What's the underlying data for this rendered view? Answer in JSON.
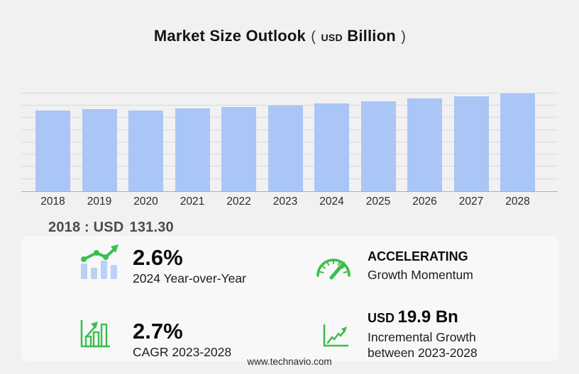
{
  "title": {
    "main": "Market Size Outlook",
    "paren_open": "(",
    "unit_currency": "USD",
    "unit_word": "Billion",
    "paren_close": ")"
  },
  "chart_data": {
    "type": "bar",
    "title": "Market Size Outlook (USD Billion)",
    "categories": [
      "2018",
      "2019",
      "2020",
      "2021",
      "2022",
      "2023",
      "2024",
      "2025",
      "2026",
      "2027",
      "2028"
    ],
    "values": [
      131.3,
      134.6,
      131.6,
      134.9,
      137.3,
      139.7,
      143.3,
      147.1,
      151.1,
      155.2,
      159.6
    ],
    "labeled_point": {
      "year": "2018",
      "value": "131.30",
      "unit": "USD Billion"
    },
    "xlabel": "",
    "ylabel": "",
    "ylim": [
      0,
      160
    ],
    "gridline_step": 20,
    "grid": true,
    "legend": false,
    "bar_color": "#a9c6f6"
  },
  "caption": {
    "label": "2018 : USD",
    "value": "131.30"
  },
  "stats": [
    {
      "id": "yoy",
      "icon": "trend-bars-icon",
      "value": "2.6%",
      "label": "2024 Year-over-Year"
    },
    {
      "id": "momentum",
      "icon": "speedometer-icon",
      "value": "ACCELERATING",
      "label": "Growth Momentum"
    },
    {
      "id": "cagr",
      "icon": "bar-growth-icon",
      "value": "2.7%",
      "label": "CAGR 2023-2028"
    },
    {
      "id": "incremental",
      "icon": "line-growth-icon",
      "value_prefix": "USD",
      "value": "19.9 Bn",
      "label_line1": "Incremental Growth",
      "label_line2": "between 2023-2028"
    }
  ],
  "footer": {
    "url": "www.technavio.com"
  },
  "colors": {
    "background": "#f1f1f2",
    "bar": "#a9c6f6",
    "icon_green": "#3bbf4e",
    "icon_blue": "#b9d2f5",
    "gridline": "#d8d8da"
  }
}
